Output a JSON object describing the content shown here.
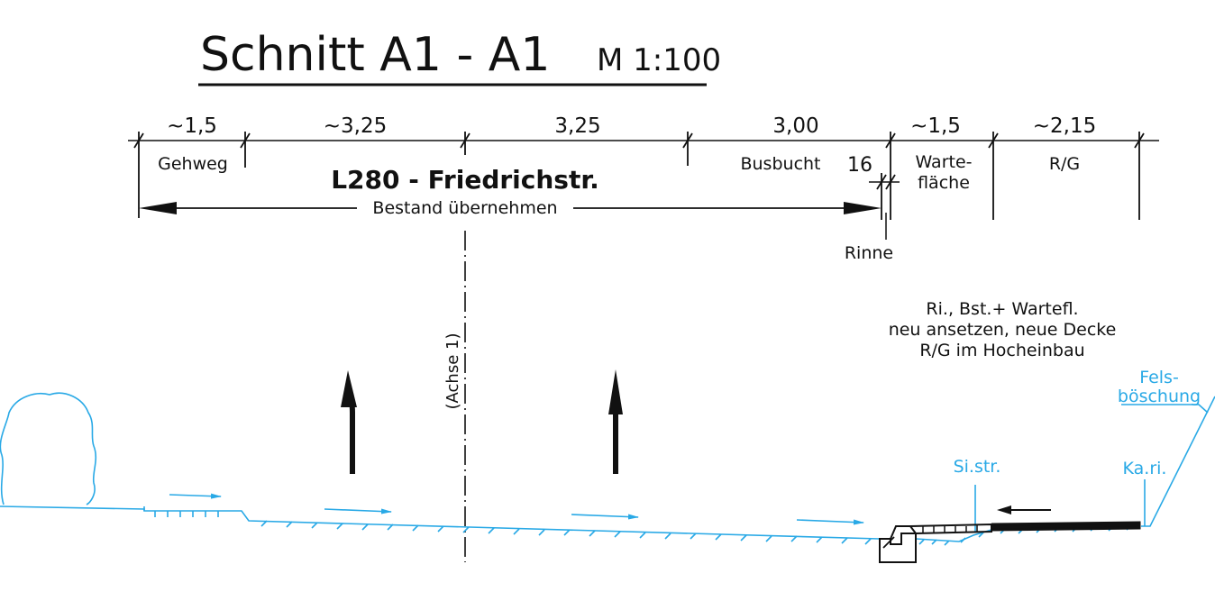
{
  "title": {
    "main": "Schnitt A1 - A1",
    "scale": "M 1:100"
  },
  "dimensions": {
    "widths": [
      "~1,5",
      "~3,25",
      "3,25",
      "3,00",
      "~1,5",
      "~2,15"
    ],
    "rinne_width": "16"
  },
  "zones": {
    "gehweg": "Gehweg",
    "busbucht": "Busbucht",
    "wartefl_line1": "Warte-",
    "wartefl_line2": "fläche",
    "rg": "R/G",
    "rinne": "Rinne"
  },
  "road": {
    "name": "L280 - Friedrichstr.",
    "existing_note": "Bestand übernehmen",
    "axis_label": "(Achse 1)"
  },
  "note": {
    "line1": "Ri., Bst.+ Wartefl.",
    "line2": "neu ansetzen, neue Decke",
    "line3": "R/G im Hocheinbau"
  },
  "features": {
    "felsboeschung_line1": "Fels-",
    "felsboeschung_line2": "böschung",
    "sistr": "Si.str.",
    "kari": "Ka.ri."
  },
  "colors": {
    "ink": "#111111",
    "terrain": "#29a9e6"
  }
}
